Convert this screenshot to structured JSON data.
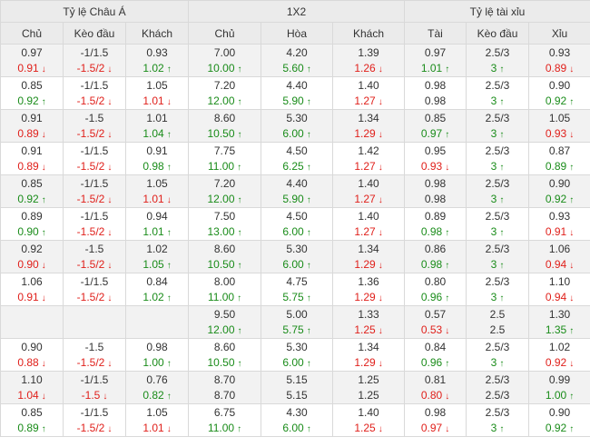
{
  "header": {
    "groups": [
      "Tỷ lệ Châu Á",
      "1X2",
      "Tỷ lệ tài xỉu"
    ],
    "columns": [
      "Chủ",
      "Kèo đầu",
      "Khách",
      "Chủ",
      "Hòa",
      "Khách",
      "Tài",
      "Kèo đầu",
      "Xỉu"
    ]
  },
  "arrows": {
    "up": "↑",
    "down": "↓",
    "up_color": "#1a8c1a",
    "down_color": "#e0201b"
  },
  "rows": [
    [
      [
        "0.97",
        "0.91",
        "down"
      ],
      [
        "-1/1.5",
        "-1.5/2",
        "down"
      ],
      [
        "0.93",
        "1.02",
        "up"
      ],
      [
        "7.00",
        "10.00",
        "up"
      ],
      [
        "4.20",
        "5.60",
        "up"
      ],
      [
        "1.39",
        "1.26",
        "down"
      ],
      [
        "0.97",
        "1.01",
        "up"
      ],
      [
        "2.5/3",
        "3",
        "up"
      ],
      [
        "0.93",
        "0.89",
        "down"
      ]
    ],
    [
      [
        "0.85",
        "0.92",
        "up"
      ],
      [
        "-1/1.5",
        "-1.5/2",
        "down"
      ],
      [
        "1.05",
        "1.01",
        "down"
      ],
      [
        "7.20",
        "12.00",
        "up"
      ],
      [
        "4.40",
        "5.90",
        "up"
      ],
      [
        "1.40",
        "1.27",
        "down"
      ],
      [
        "0.98",
        "0.98",
        ""
      ],
      [
        "2.5/3",
        "3",
        "up"
      ],
      [
        "0.90",
        "0.92",
        "up"
      ]
    ],
    [
      [
        "0.91",
        "0.89",
        "down"
      ],
      [
        "-1.5",
        "-1.5/2",
        "down"
      ],
      [
        "1.01",
        "1.04",
        "up"
      ],
      [
        "8.60",
        "10.50",
        "up"
      ],
      [
        "5.30",
        "6.00",
        "up"
      ],
      [
        "1.34",
        "1.29",
        "down"
      ],
      [
        "0.85",
        "0.97",
        "up"
      ],
      [
        "2.5/3",
        "3",
        "up"
      ],
      [
        "1.05",
        "0.93",
        "down"
      ]
    ],
    [
      [
        "0.91",
        "0.89",
        "down"
      ],
      [
        "-1/1.5",
        "-1.5/2",
        "down"
      ],
      [
        "0.91",
        "0.98",
        "up"
      ],
      [
        "7.75",
        "11.00",
        "up"
      ],
      [
        "4.50",
        "6.25",
        "up"
      ],
      [
        "1.42",
        "1.27",
        "down"
      ],
      [
        "0.95",
        "0.93",
        "down"
      ],
      [
        "2.5/3",
        "3",
        "up"
      ],
      [
        "0.87",
        "0.89",
        "up"
      ]
    ],
    [
      [
        "0.85",
        "0.92",
        "up"
      ],
      [
        "-1/1.5",
        "-1.5/2",
        "down"
      ],
      [
        "1.05",
        "1.01",
        "down"
      ],
      [
        "7.20",
        "12.00",
        "up"
      ],
      [
        "4.40",
        "5.90",
        "up"
      ],
      [
        "1.40",
        "1.27",
        "down"
      ],
      [
        "0.98",
        "0.98",
        ""
      ],
      [
        "2.5/3",
        "3",
        "up"
      ],
      [
        "0.90",
        "0.92",
        "up"
      ]
    ],
    [
      [
        "0.89",
        "0.90",
        "up"
      ],
      [
        "-1/1.5",
        "-1.5/2",
        "down"
      ],
      [
        "0.94",
        "1.01",
        "up"
      ],
      [
        "7.50",
        "13.00",
        "up"
      ],
      [
        "4.50",
        "6.00",
        "up"
      ],
      [
        "1.40",
        "1.27",
        "down"
      ],
      [
        "0.89",
        "0.98",
        "up"
      ],
      [
        "2.5/3",
        "3",
        "up"
      ],
      [
        "0.93",
        "0.91",
        "down"
      ]
    ],
    [
      [
        "0.92",
        "0.90",
        "down"
      ],
      [
        "-1.5",
        "-1.5/2",
        "down"
      ],
      [
        "1.02",
        "1.05",
        "up"
      ],
      [
        "8.60",
        "10.50",
        "up"
      ],
      [
        "5.30",
        "6.00",
        "up"
      ],
      [
        "1.34",
        "1.29",
        "down"
      ],
      [
        "0.86",
        "0.98",
        "up"
      ],
      [
        "2.5/3",
        "3",
        "up"
      ],
      [
        "1.06",
        "0.94",
        "down"
      ]
    ],
    [
      [
        "1.06",
        "0.91",
        "down"
      ],
      [
        "-1/1.5",
        "-1.5/2",
        "down"
      ],
      [
        "0.84",
        "1.02",
        "up"
      ],
      [
        "8.00",
        "11.00",
        "up"
      ],
      [
        "4.75",
        "5.75",
        "up"
      ],
      [
        "1.36",
        "1.29",
        "down"
      ],
      [
        "0.80",
        "0.96",
        "up"
      ],
      [
        "2.5/3",
        "3",
        "up"
      ],
      [
        "1.10",
        "0.94",
        "down"
      ]
    ],
    [
      [
        "",
        "",
        " "
      ],
      [
        "",
        "",
        " "
      ],
      [
        "",
        "",
        " "
      ],
      [
        "9.50",
        "12.00",
        "up"
      ],
      [
        "5.00",
        "5.75",
        "up"
      ],
      [
        "1.33",
        "1.25",
        "down"
      ],
      [
        "0.57",
        "0.53",
        "down"
      ],
      [
        "2.5",
        "2.5",
        ""
      ],
      [
        "1.30",
        "1.35",
        "up"
      ]
    ],
    [
      [
        "0.90",
        "0.88",
        "down"
      ],
      [
        "-1.5",
        "-1.5/2",
        "down"
      ],
      [
        "0.98",
        "1.00",
        "up"
      ],
      [
        "8.60",
        "10.50",
        "up"
      ],
      [
        "5.30",
        "6.00",
        "up"
      ],
      [
        "1.34",
        "1.29",
        "down"
      ],
      [
        "0.84",
        "0.96",
        "up"
      ],
      [
        "2.5/3",
        "3",
        "up"
      ],
      [
        "1.02",
        "0.92",
        "down"
      ]
    ],
    [
      [
        "1.10",
        "1.04",
        "down"
      ],
      [
        "-1/1.5",
        "-1.5",
        "down"
      ],
      [
        "0.76",
        "0.82",
        "up"
      ],
      [
        "8.70",
        "8.70",
        ""
      ],
      [
        "5.15",
        "5.15",
        ""
      ],
      [
        "1.25",
        "1.25",
        ""
      ],
      [
        "0.81",
        "0.80",
        "down"
      ],
      [
        "2.5/3",
        "2.5/3",
        ""
      ],
      [
        "0.99",
        "1.00",
        "up"
      ]
    ],
    [
      [
        "0.85",
        "0.89",
        "up"
      ],
      [
        "-1/1.5",
        "-1.5/2",
        "down"
      ],
      [
        "1.05",
        "1.01",
        "down"
      ],
      [
        "6.75",
        "11.00",
        "up"
      ],
      [
        "4.30",
        "6.00",
        "up"
      ],
      [
        "1.40",
        "1.25",
        "down"
      ],
      [
        "0.98",
        "0.97",
        "down"
      ],
      [
        "2.5/3",
        "3",
        "up"
      ],
      [
        "0.90",
        "0.92",
        "up"
      ]
    ]
  ]
}
